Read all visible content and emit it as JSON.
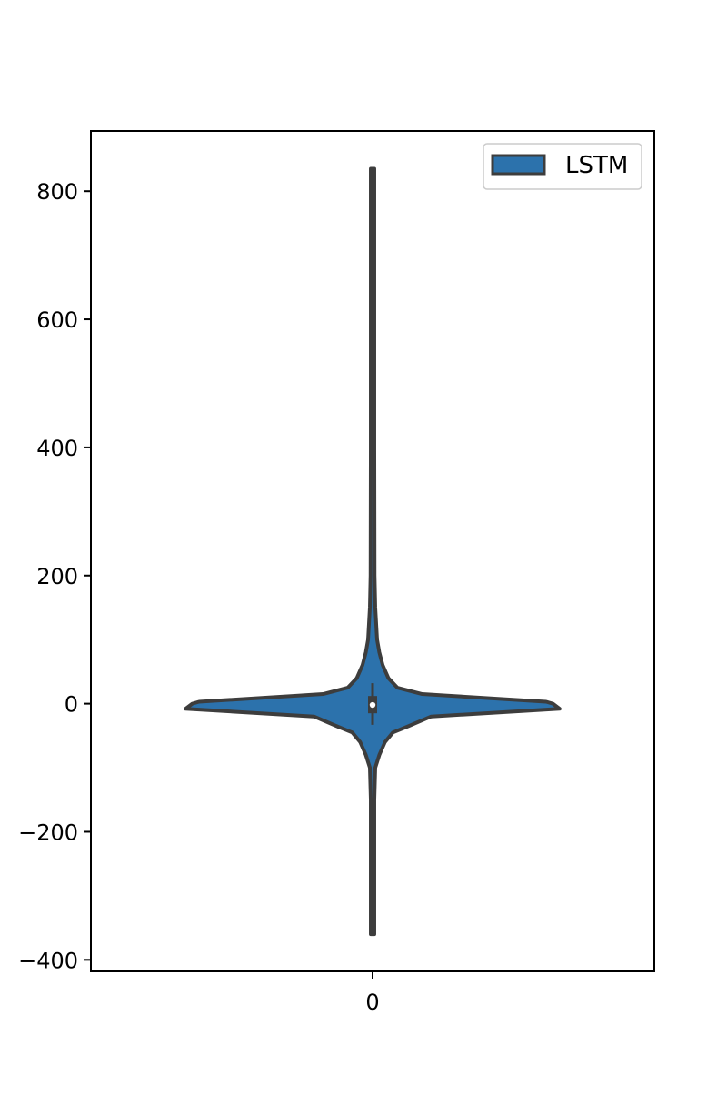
{
  "chart_data": {
    "type": "violin",
    "categories": [
      "0"
    ],
    "ylim": [
      -418,
      894
    ],
    "yticks": [
      -400,
      -200,
      0,
      200,
      400,
      600,
      800
    ],
    "ytick_labels": [
      "−400",
      "−200",
      "0",
      "200",
      "400",
      "600",
      "800"
    ],
    "title": "",
    "xlabel": "",
    "ylabel": "",
    "grid": false,
    "legend": {
      "position": "top-right",
      "entries": [
        "LSTM"
      ]
    },
    "series": [
      {
        "name": "LSTM",
        "color": "#2c72ac",
        "edge_color": "#3d3d3d",
        "min": -360,
        "max": 835,
        "median": -2,
        "q1": -15,
        "q3": 12,
        "whisker_low": -33,
        "whisker_high": 32,
        "density": [
          [
            -360,
            0.008
          ],
          [
            -250,
            0.008
          ],
          [
            -150,
            0.008
          ],
          [
            -100,
            0.012
          ],
          [
            -80,
            0.03
          ],
          [
            -60,
            0.055
          ],
          [
            -45,
            0.09
          ],
          [
            -35,
            0.16
          ],
          [
            -20,
            0.26
          ],
          [
            -8,
            0.83
          ],
          [
            0,
            0.8
          ],
          [
            3,
            0.77
          ],
          [
            15,
            0.22
          ],
          [
            25,
            0.11
          ],
          [
            40,
            0.07
          ],
          [
            60,
            0.045
          ],
          [
            80,
            0.03
          ],
          [
            100,
            0.02
          ],
          [
            150,
            0.012
          ],
          [
            200,
            0.009
          ],
          [
            400,
            0.008
          ],
          [
            835,
            0.008
          ]
        ]
      }
    ]
  }
}
